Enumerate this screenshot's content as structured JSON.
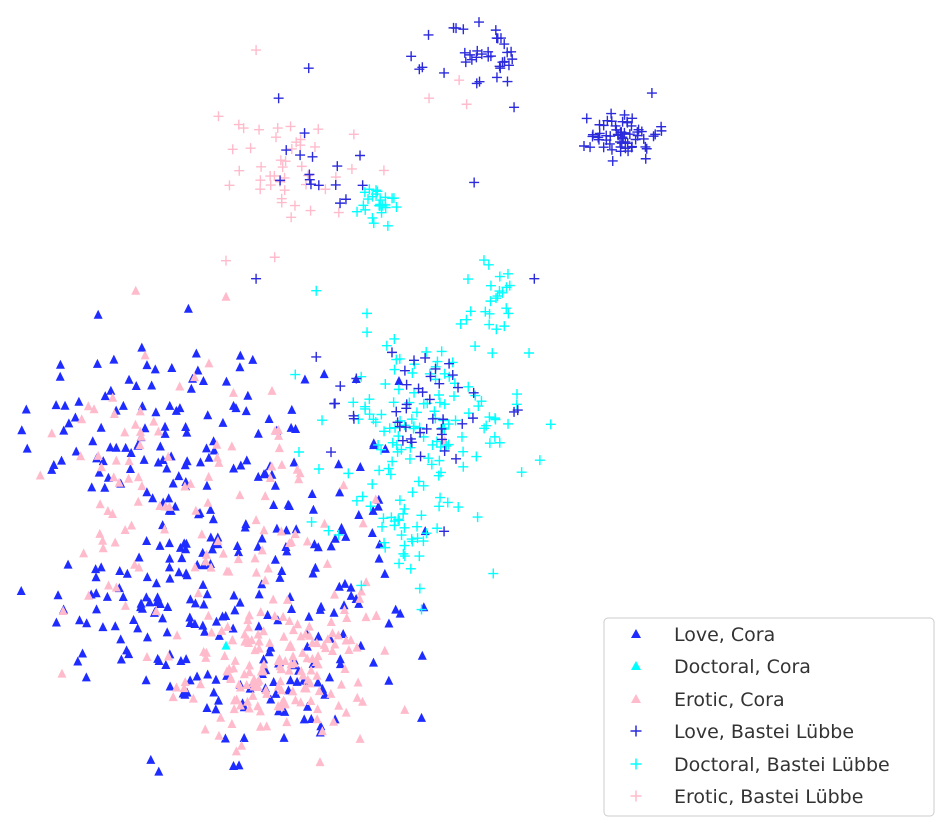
{
  "chart_data": {
    "type": "scatter",
    "title": "",
    "xlabel": "",
    "ylabel": "",
    "axes_visible": false,
    "grid": false,
    "legend_position": "bottom-right",
    "series": [
      {
        "name": "Love, Cora",
        "marker": "triangle",
        "color": "#1f2cff",
        "clusters": [
          {
            "center": [
              15,
              60
            ],
            "spread": [
              9,
              8
            ],
            "count": 90
          },
          {
            "center": [
              15,
              31
            ],
            "spread": [
              8,
              7
            ],
            "count": 80
          },
          {
            "center": [
              30,
              45
            ],
            "spread": [
              9,
              10
            ],
            "count": 90
          },
          {
            "center": [
              32,
              18
            ],
            "spread": [
              7,
              6
            ],
            "count": 60
          },
          {
            "center": [
              42,
              30
            ],
            "spread": [
              6,
              6
            ],
            "count": 25
          }
        ],
        "points": [
          [
            22,
            68
          ],
          [
            48,
            68
          ],
          [
            51,
            12
          ],
          [
            15,
            5
          ],
          [
            26,
            4
          ],
          [
            8,
            79
          ],
          [
            20,
            80
          ]
        ]
      },
      {
        "name": "Doctoral, Cora",
        "marker": "triangle",
        "color": "#00ffff",
        "clusters": [],
        "points": [
          [
            25,
            24
          ]
        ]
      },
      {
        "name": "Erotic, Cora",
        "marker": "triangle",
        "color": "#ffbbcc",
        "clusters": [
          {
            "center": [
              32,
              19
            ],
            "spread": [
              6,
              5
            ],
            "count": 150
          },
          {
            "center": [
              24,
              42
            ],
            "spread": [
              10,
              12
            ],
            "count": 100
          },
          {
            "center": [
              14,
              60
            ],
            "spread": [
              6,
              8
            ],
            "count": 25
          }
        ],
        "points": [
          [
            13,
            83
          ],
          [
            25,
            82
          ],
          [
            43,
            33
          ],
          [
            45,
            29
          ]
        ]
      },
      {
        "name": "Love, Bastei Lübbe",
        "marker": "plus",
        "color": "#2b2bdc",
        "clusters": [
          {
            "center": [
              78,
              109
            ],
            "spread": [
              2.2,
              2.0
            ],
            "count": 60
          },
          {
            "center": [
              50,
              64
            ],
            "spread": [
              6,
              5
            ],
            "count": 45
          },
          {
            "center": [
              59,
              121
            ],
            "spread": [
              3,
              4
            ],
            "count": 35
          },
          {
            "center": [
              39,
              103
            ],
            "spread": [
              3,
              3
            ],
            "count": 15
          }
        ],
        "points": [
          [
            61,
            125
          ],
          [
            62,
            124
          ],
          [
            32,
            115
          ],
          [
            29,
            85
          ],
          [
            37,
            72
          ],
          [
            54,
            43
          ],
          [
            66,
            85
          ],
          [
            58,
            101
          ],
          [
            36,
            120
          ]
        ]
      },
      {
        "name": "Doctoral, Bastei Lübbe",
        "marker": "plus",
        "color": "#00ffff",
        "clusters": [
          {
            "center": [
              51,
              60
            ],
            "spread": [
              7,
              8
            ],
            "count": 130
          },
          {
            "center": [
              45,
              97
            ],
            "spread": [
              1.2,
              2
            ],
            "count": 25
          },
          {
            "center": [
              61,
              81
            ],
            "spread": [
              1.5,
              4
            ],
            "count": 20
          },
          {
            "center": [
              48,
              44
            ],
            "spread": [
              3,
              4
            ],
            "count": 30
          }
        ],
        "points": [
          [
            43,
            34
          ],
          [
            51,
            30
          ],
          [
            37,
            83
          ]
        ]
      },
      {
        "name": "Erotic, Bastei Lübbe",
        "marker": "plus",
        "color": "#ffbbcc",
        "clusters": [
          {
            "center": [
              33,
              104
            ],
            "spread": [
              3,
              4
            ],
            "count": 40
          }
        ],
        "points": [
          [
            29,
            123
          ],
          [
            24,
            112
          ],
          [
            42,
            109
          ],
          [
            46,
            103
          ],
          [
            52,
            115
          ],
          [
            57,
            114
          ],
          [
            56,
            118
          ],
          [
            62,
            121
          ],
          [
            25,
            88
          ],
          [
            40,
            96
          ]
        ]
      }
    ],
    "legend": {
      "entries": [
        "Love, Cora",
        "Doctoral, Cora",
        "Erotic, Cora",
        "Love, Bastei Lübbe",
        "Doctoral, Bastei Lübbe",
        "Erotic, Bastei Lübbe"
      ]
    }
  }
}
